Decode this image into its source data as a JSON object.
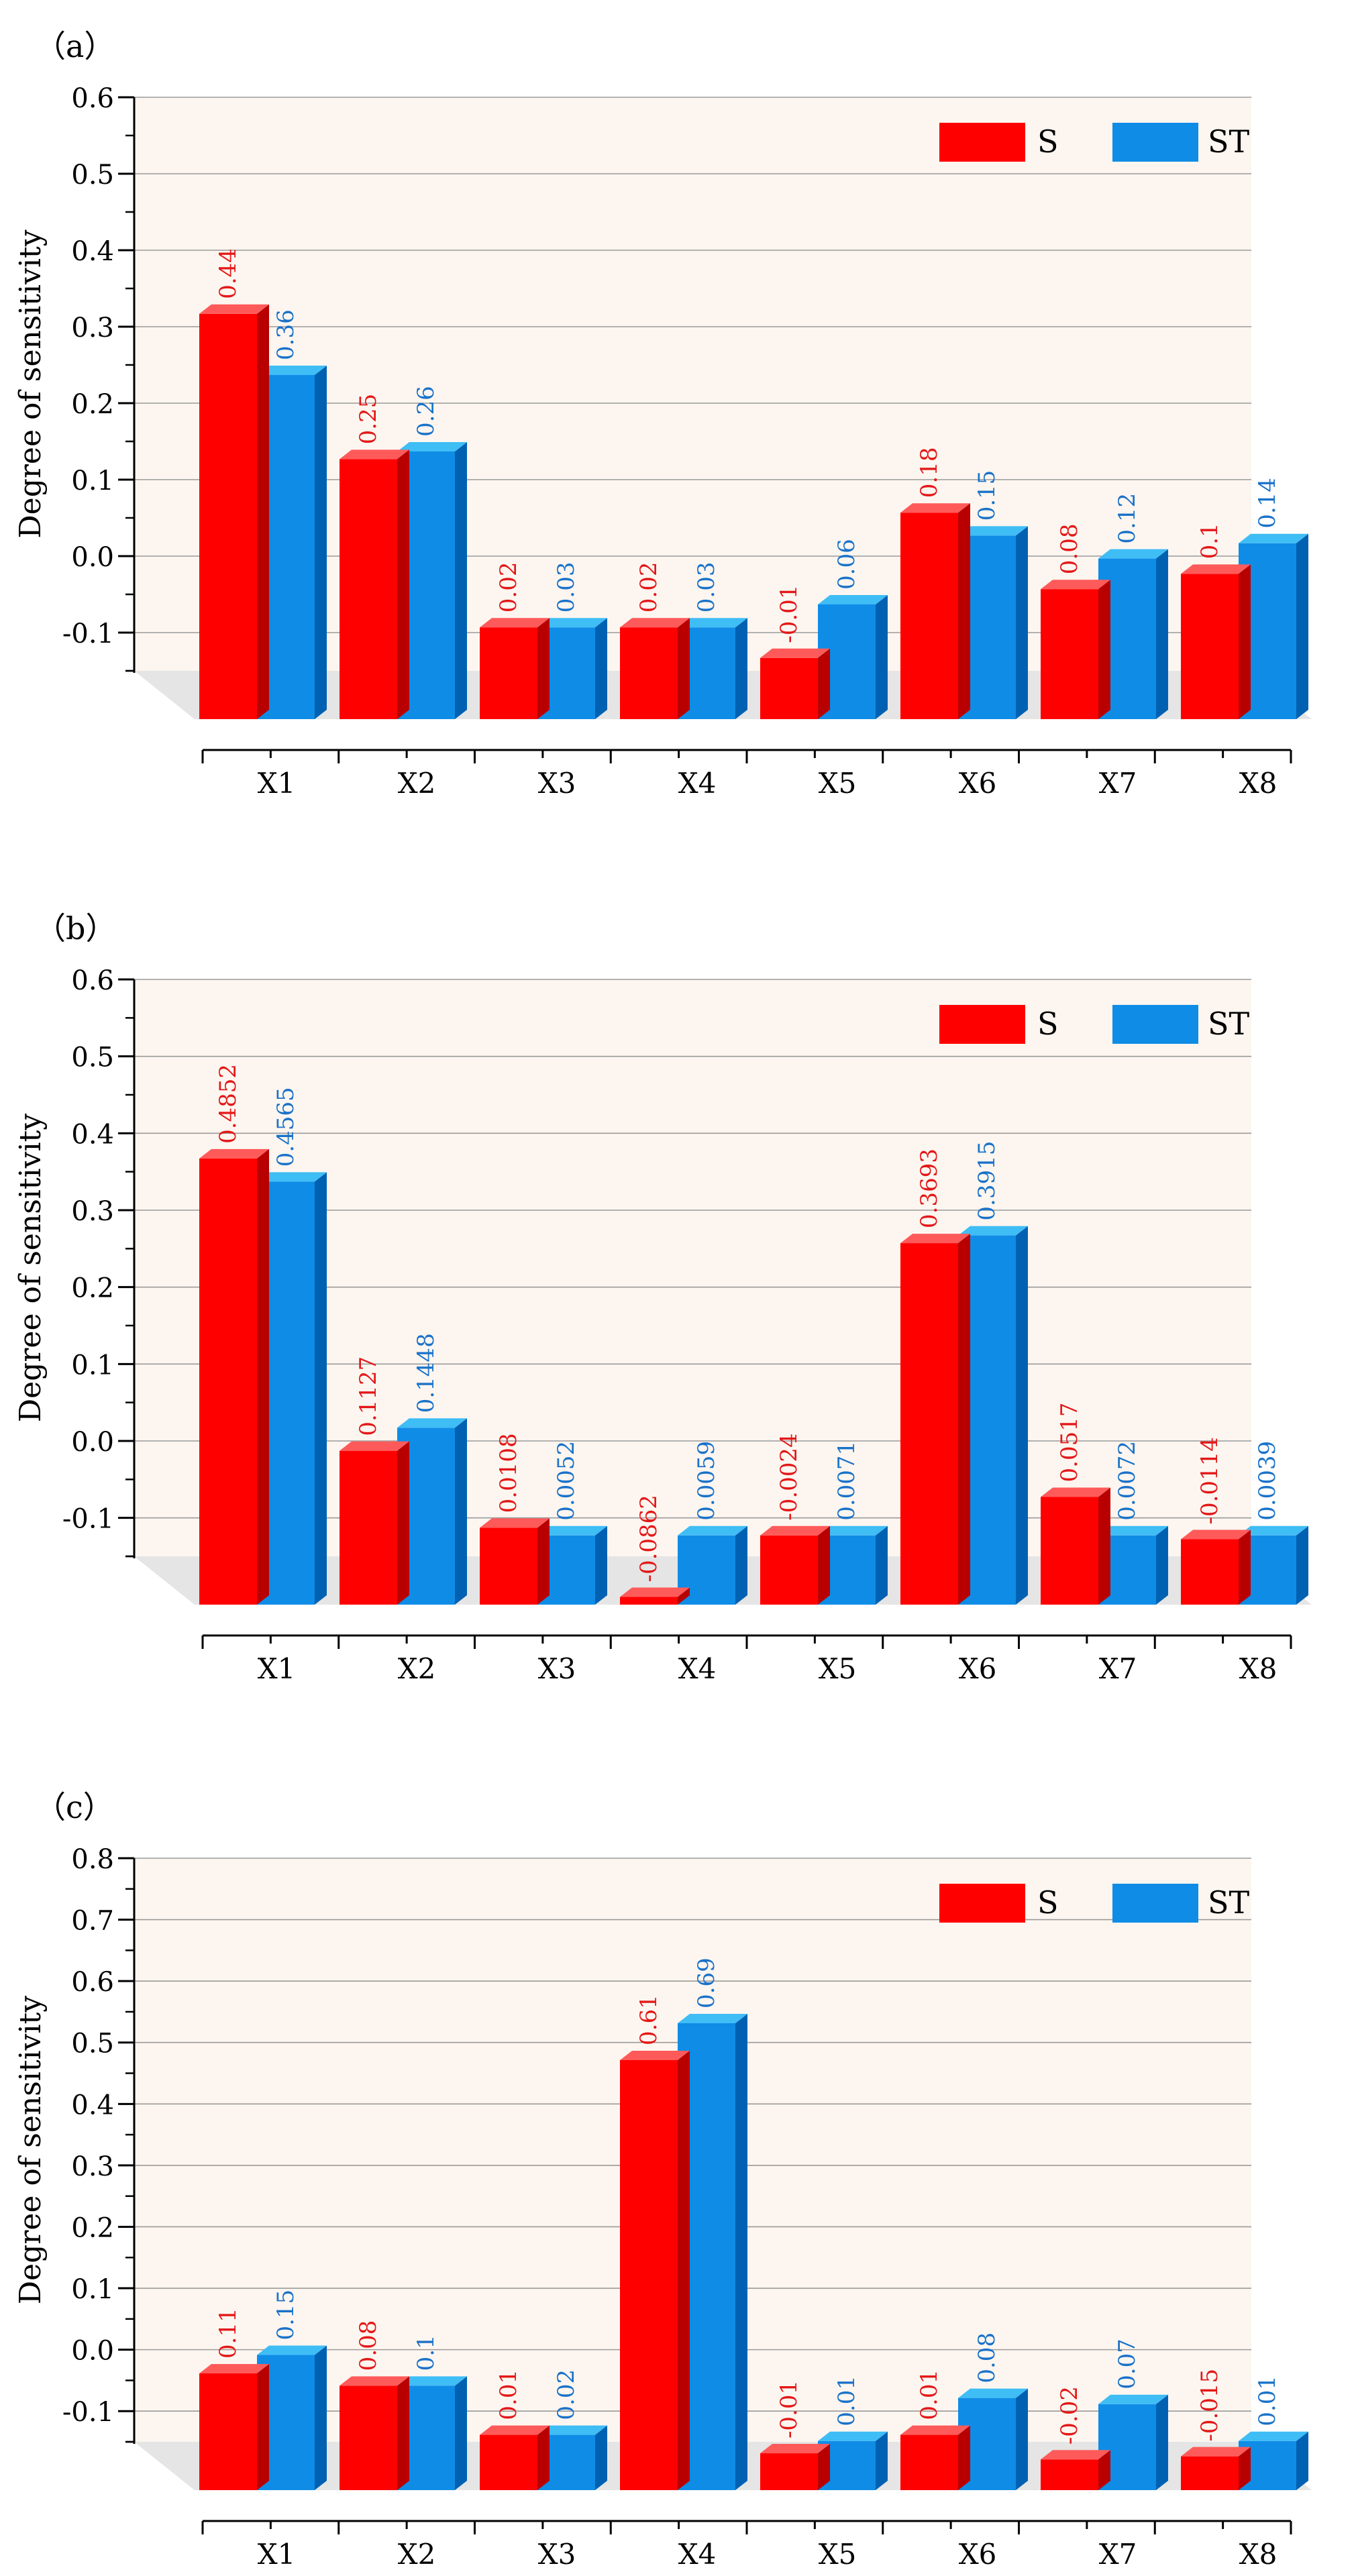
{
  "colors": {
    "s_front": "#ff0000",
    "s_side": "#b80000",
    "s_top": "#ff5a5a",
    "st_front": "#0f8ce6",
    "st_side": "#0061b3",
    "st_top": "#3fbdf5",
    "s_label": "#e31818",
    "st_label": "#1a72c9",
    "plot_bg": "#fdf6f0",
    "floor": "#e5e5e5"
  },
  "chart_data": [
    {
      "type": "bar",
      "panel_label": "（a）",
      "ylabel": "Degree of sensitivity",
      "ylim": [
        -0.15,
        0.6
      ],
      "yticks": [
        "0.6",
        "0.5",
        "0.4",
        "0.3",
        "0.2",
        "0.1",
        "0.0",
        "-0.1"
      ],
      "categories": [
        "X1",
        "X2",
        "X3",
        "X4",
        "X5",
        "X6",
        "X7",
        "X8"
      ],
      "legend": "top-right",
      "grid": true,
      "series": [
        {
          "name": "S",
          "values": [
            0.38,
            0.19,
            -0.03,
            -0.03,
            -0.07,
            0.12,
            0.02,
            0.04
          ],
          "labels": [
            "0.44",
            "0.25",
            "0.02",
            "0.02",
            "-0.01",
            "0.18",
            "0.08",
            "0.1"
          ]
        },
        {
          "name": "ST",
          "values": [
            0.3,
            0.2,
            -0.03,
            -0.03,
            0.0,
            0.09,
            0.06,
            0.08
          ],
          "labels": [
            "0.36",
            "0.26",
            "0.03",
            "0.03",
            "0.06",
            "0.15",
            "0.12",
            "0.14"
          ]
        }
      ]
    },
    {
      "type": "bar",
      "panel_label": "（b）",
      "ylabel": "Degree of sensitivity",
      "ylim": [
        -0.15,
        0.6
      ],
      "yticks": [
        "0.6",
        "0.5",
        "0.4",
        "0.3",
        "0.2",
        "0.1",
        "0.0",
        "-0.1"
      ],
      "categories": [
        "X1",
        "X2",
        "X3",
        "X4",
        "X5",
        "X6",
        "X7",
        "X8"
      ],
      "legend": "top-right",
      "grid": true,
      "series": [
        {
          "name": "S",
          "values": [
            0.43,
            0.05,
            -0.05,
            -0.14,
            -0.06,
            0.32,
            -0.01,
            -0.065
          ],
          "labels": [
            "0.4852",
            "0.1127",
            "0.0108",
            "-0.0862",
            "-0.0024",
            "0.3693",
            "0.0517",
            "-0.0114"
          ]
        },
        {
          "name": "ST",
          "values": [
            0.4,
            0.08,
            -0.06,
            -0.06,
            -0.06,
            0.33,
            -0.06,
            -0.06
          ],
          "labels": [
            "0.4565",
            "0.1448",
            "0.0052",
            "0.0059",
            "0.0071",
            "0.3915",
            "0.0072",
            "0.0039"
          ]
        }
      ]
    },
    {
      "type": "bar",
      "panel_label": "（c）",
      "ylabel": "Degree of sensitivity",
      "ylim": [
        -0.15,
        0.8
      ],
      "yticks": [
        "0.8",
        "0.7",
        "0.6",
        "0.5",
        "0.4",
        "0.3",
        "0.2",
        "0.1",
        "0.0",
        "-0.1"
      ],
      "categories": [
        "X1",
        "X2",
        "X3",
        "X4",
        "X5",
        "X6",
        "X7",
        "X8"
      ],
      "legend": "top-right",
      "grid": true,
      "series": [
        {
          "name": "S",
          "values": [
            0.04,
            0.02,
            -0.06,
            0.55,
            -0.09,
            -0.06,
            -0.1,
            -0.095
          ],
          "labels": [
            "0.11",
            "0.08",
            "0.01",
            "0.61",
            "-0.01",
            "0.01",
            "-0.02",
            "-0.015"
          ]
        },
        {
          "name": "ST",
          "values": [
            0.07,
            0.02,
            -0.06,
            0.61,
            -0.07,
            0.0,
            -0.01,
            -0.07
          ],
          "labels": [
            "0.15",
            "0.1",
            "0.02",
            "0.69",
            "0.01",
            "0.08",
            "0.07",
            "0.01"
          ]
        }
      ]
    }
  ]
}
